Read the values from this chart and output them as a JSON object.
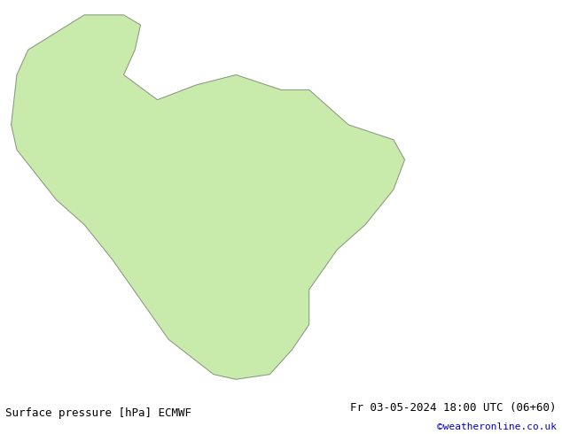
{
  "title_left": "Surface pressure [hPa] ECMWF",
  "title_right": "Fr 03-05-2024 18:00 UTC (06+60)",
  "credit": "©weatheronline.co.uk",
  "bg_map_color": "#d4eaff",
  "land_color": "#c8eaaa",
  "border_color": "#aaaaaa",
  "contour_colors": {
    "black": "#000000",
    "blue": "#0000ff",
    "red": "#ff0000"
  },
  "bottom_bar_color": "#ffffff",
  "title_color": "#000000",
  "credit_color": "#0000cc",
  "fig_bg": "#ffffff"
}
